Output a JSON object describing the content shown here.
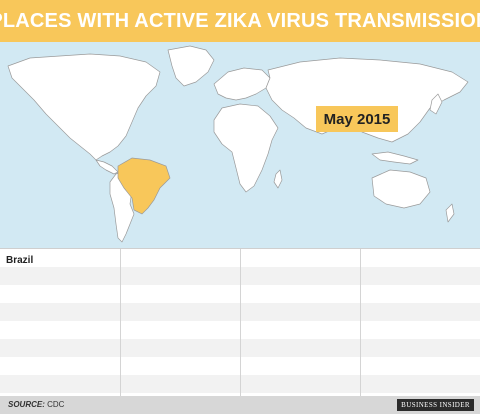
{
  "title": "PLACES WITH ACTIVE ZIKA VIRUS TRANSMISSION",
  "map": {
    "date_label": "May 2015",
    "highlighted_country": "Brazil",
    "highlight_color": "#f8c75a",
    "ocean_color": "#d2e9f3",
    "land_color": "#ffffff"
  },
  "table": {
    "columns": [
      [
        "Brazil"
      ],
      [],
      [],
      []
    ]
  },
  "footer": {
    "source_label": "SOURCE:",
    "source_value": "CDC",
    "brand": "BUSINESS INSIDER"
  }
}
